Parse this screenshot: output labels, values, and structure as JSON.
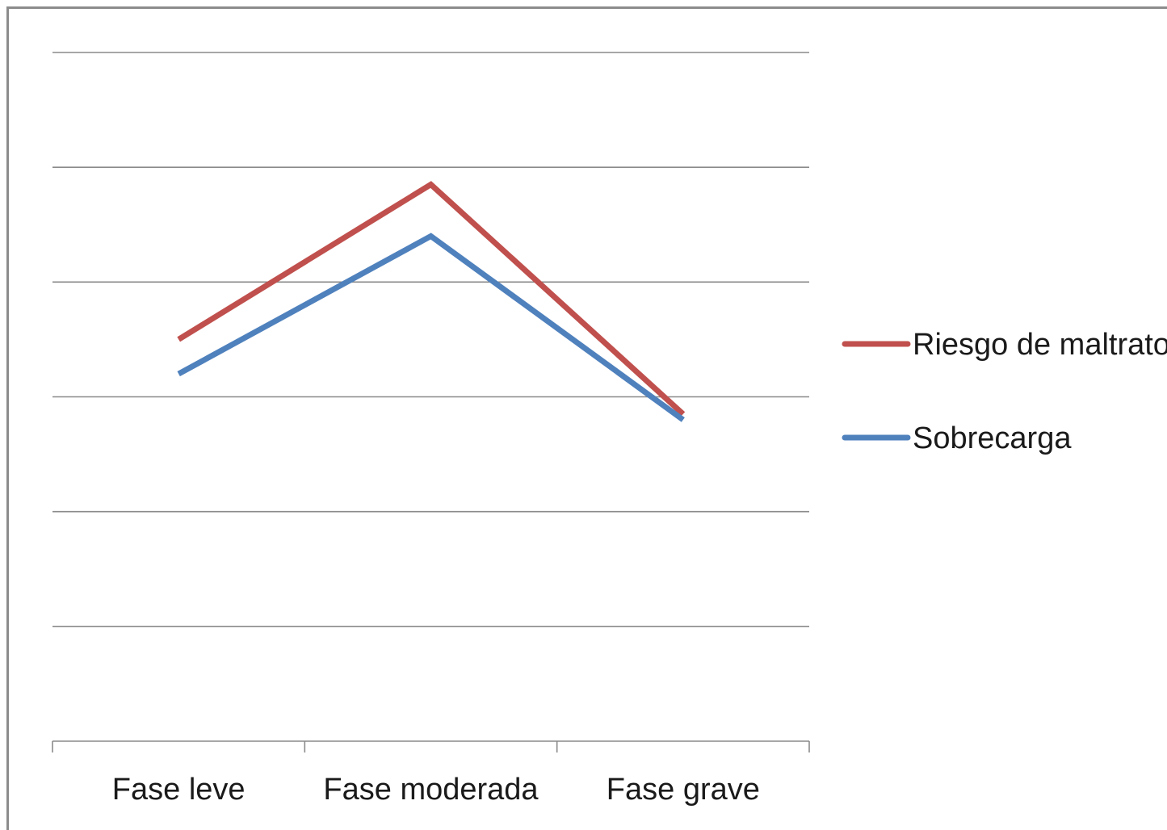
{
  "chart_data": {
    "type": "line",
    "title": "",
    "xlabel": "",
    "ylabel": "",
    "categories": [
      "Fase leve",
      "Fase moderada",
      "Fase grave"
    ],
    "ylim": [
      0,
      6
    ],
    "grid": true,
    "legend_position": "right",
    "series": [
      {
        "name": "Riesgo de maltrato",
        "color": "#c0504d",
        "values": [
          3.5,
          4.85,
          2.85
        ]
      },
      {
        "name": "Sobrecarga",
        "color": "#4f81bd",
        "values": [
          3.2,
          4.4,
          2.8
        ]
      }
    ]
  }
}
